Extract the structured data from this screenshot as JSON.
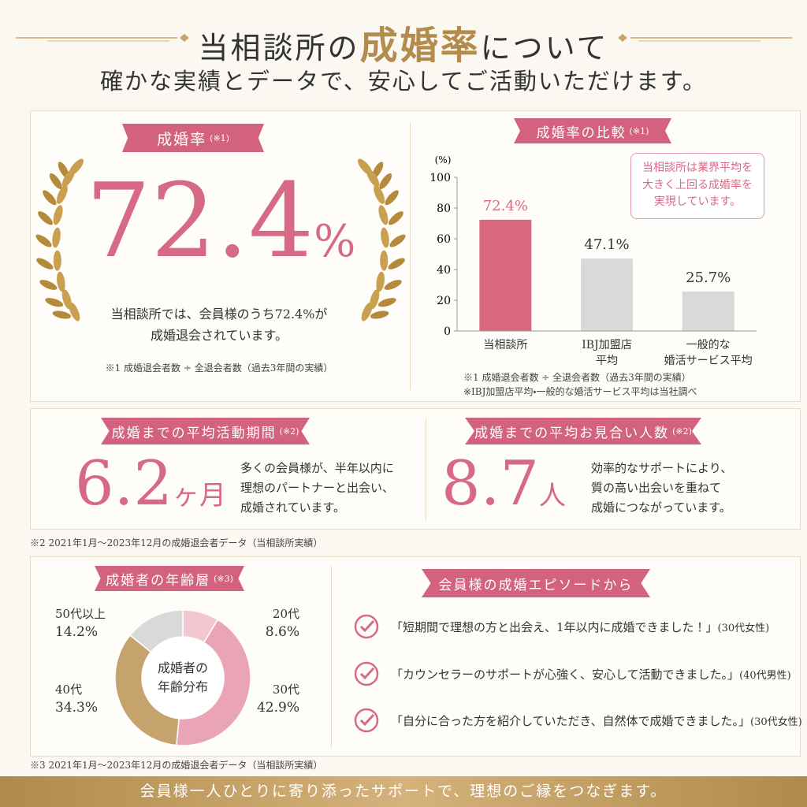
{
  "header": {
    "title_before": "当相談所の",
    "title_highlight": "成婚率",
    "title_after": "について",
    "subtitle": "確かな実績とデータで、安心してご活動いただけます。"
  },
  "stat_rate": {
    "badge": "成婚率",
    "note": "(※1)",
    "value": 72.4,
    "unit": "%",
    "description": "当相談所では、会員様のうち72.4%が\n成婚退会されています。",
    "footnote": "※1 成婚退会者数 ÷ 全退会者数（過去3年間の実績）"
  },
  "comparison": {
    "badge": "成婚率の比較",
    "note": "(※1)",
    "callout": "当相談所は業界平均を\n大きく上回る成婚率を\n実現しています。",
    "footnotes": [
      "※1 成婚退会者数 ÷ 全退会者数（過去3年間の実績）",
      "※IBJ加盟店平均・一般的な婚活サービス平均は当社調べ"
    ]
  },
  "stat_period": {
    "badge": "成婚までの平均活動期間",
    "note": "(※2)",
    "value": 6.2,
    "unit": "ヶ月",
    "description": "多くの会員様が、半年以内に\n理想のパートナーと出会い、\n成婚されています。"
  },
  "stat_meetings": {
    "badge": "成婚までの平均お見合い人数",
    "note": "(※2)",
    "value": 8.7,
    "unit": "人",
    "description": "効率的なサポートにより、\n質の高い出会いを重ねて\n成婚につながっています。"
  },
  "note2": "※2 2021年1月〜2023年12月の成婚退会者データ（当相談所実績）",
  "age": {
    "badge": "成婚者の年齢層",
    "note": "(※3)"
  },
  "episodes": {
    "badge": "会員様の成婚エピソードから",
    "items": [
      {
        "quote": "「短期間で理想の方と出会え、1年以内に成婚できました！」",
        "who": "(30代女性)"
      },
      {
        "quote": "「カウンセラーのサポートが心強く、安心して活動できました。」",
        "who": "(40代男性)"
      },
      {
        "quote": "「自分に合った方を紹介していただき、自然体で成婚できました。」",
        "who": "(30代女性)"
      }
    ]
  },
  "note3": "※3 2021年1月〜2023年12月の成婚退会者データ（当相談所実績）",
  "footer": "会員様一人ひとりに寄り添ったサポートで、理想のご縁をつなぎます。",
  "chart_data": [
    {
      "type": "bar",
      "y_label": "(%)",
      "categories": [
        "当相談所",
        "IBJ加盟店\n平均",
        "一般的な\n婚活サービス平均"
      ],
      "values": [
        72.4,
        47.1,
        25.7
      ],
      "value_labels": [
        "72.4%",
        "47.1%",
        "25.7%"
      ],
      "colors": [
        "#d9697f",
        "#d9d9d9",
        "#d9d9d9"
      ],
      "label_colors": [
        "#d9697f",
        "#333333",
        "#333333"
      ],
      "ylim": [
        0,
        100
      ],
      "yticks": [
        0,
        20,
        40,
        60,
        80,
        100
      ]
    },
    {
      "type": "donut",
      "center_label": "成婚者の\n年齢分布",
      "categories": [
        "20代",
        "30代",
        "40代",
        "50代以上"
      ],
      "values": [
        8.6,
        42.9,
        34.3,
        14.2
      ],
      "value_labels": [
        "8.6%",
        "42.9%",
        "34.3%",
        "14.2%"
      ],
      "colors": [
        "#f3c6d0",
        "#e9a4b6",
        "#c6a26c",
        "#d9d9d9"
      ]
    }
  ]
}
